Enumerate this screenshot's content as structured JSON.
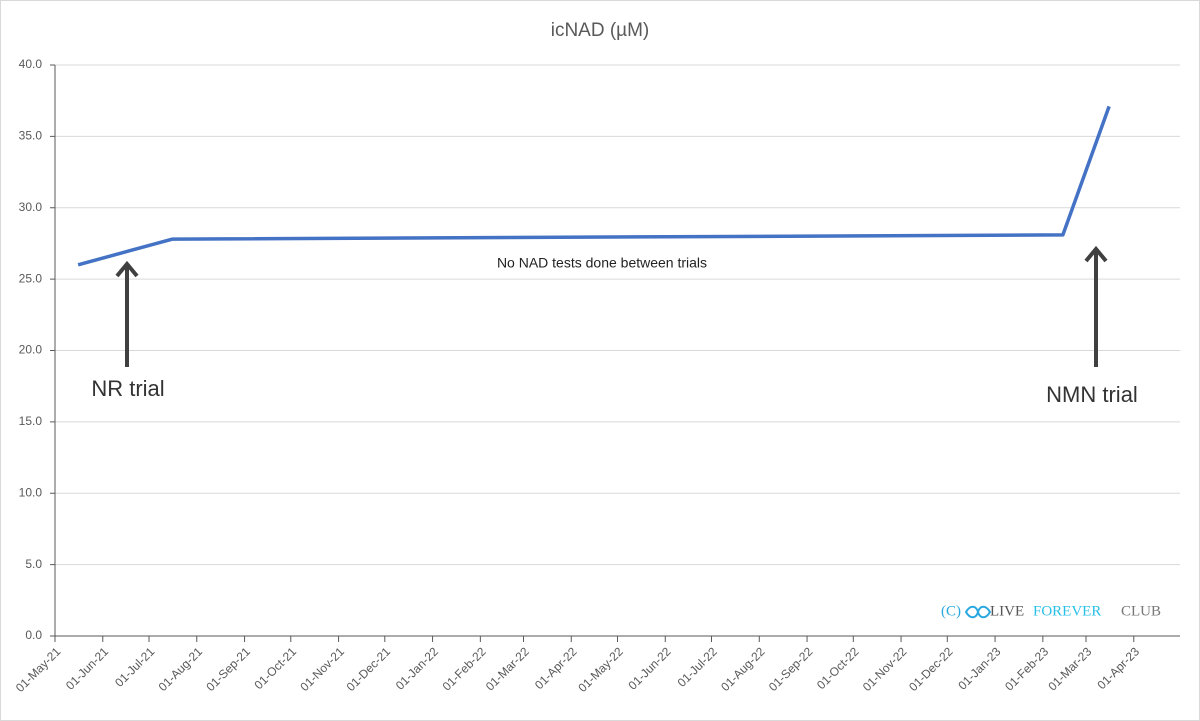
{
  "chart_data": {
    "type": "line",
    "title": "icNAD (µM)",
    "x": [
      "2021-05-16",
      "2021-07-16",
      "2023-02-14",
      "2023-03-16"
    ],
    "series": [
      {
        "name": "icNAD",
        "color": "#4472c4",
        "values": [
          26.0,
          27.8,
          28.1,
          37.1
        ]
      }
    ],
    "xlim": [
      "2021-05-01",
      "2023-05-01"
    ],
    "xticks": [
      {
        "value": "2021-05-01",
        "label": "01-May-21"
      },
      {
        "value": "2021-06-01",
        "label": "01-Jun-21"
      },
      {
        "value": "2021-07-01",
        "label": "01-Jul-21"
      },
      {
        "value": "2021-08-01",
        "label": "01-Aug-21"
      },
      {
        "value": "2021-09-01",
        "label": "01-Sep-21"
      },
      {
        "value": "2021-10-01",
        "label": "01-Oct-21"
      },
      {
        "value": "2021-11-01",
        "label": "01-Nov-21"
      },
      {
        "value": "2021-12-01",
        "label": "01-Dec-21"
      },
      {
        "value": "2022-01-01",
        "label": "01-Jan-22"
      },
      {
        "value": "2022-02-01",
        "label": "01-Feb-22"
      },
      {
        "value": "2022-03-01",
        "label": "01-Mar-22"
      },
      {
        "value": "2022-04-01",
        "label": "01-Apr-22"
      },
      {
        "value": "2022-05-01",
        "label": "01-May-22"
      },
      {
        "value": "2022-06-01",
        "label": "01-Jun-22"
      },
      {
        "value": "2022-07-01",
        "label": "01-Jul-22"
      },
      {
        "value": "2022-08-01",
        "label": "01-Aug-22"
      },
      {
        "value": "2022-09-01",
        "label": "01-Sep-22"
      },
      {
        "value": "2022-10-01",
        "label": "01-Oct-22"
      },
      {
        "value": "2022-11-01",
        "label": "01-Nov-22"
      },
      {
        "value": "2022-12-01",
        "label": "01-Dec-22"
      },
      {
        "value": "2023-01-01",
        "label": "01-Jan-23"
      },
      {
        "value": "2023-02-01",
        "label": "01-Feb-23"
      },
      {
        "value": "2023-03-01",
        "label": "01-Mar-23"
      },
      {
        "value": "2023-04-01",
        "label": "01-Apr-23"
      }
    ],
    "ylim": [
      0,
      40
    ],
    "yticks": [
      {
        "value": 0,
        "label": "0.0"
      },
      {
        "value": 5,
        "label": "5.0"
      },
      {
        "value": 10,
        "label": "10.0"
      },
      {
        "value": 15,
        "label": "15.0"
      },
      {
        "value": 20,
        "label": "20.0"
      },
      {
        "value": 25,
        "label": "25.0"
      },
      {
        "value": 30,
        "label": "30.0"
      },
      {
        "value": 35,
        "label": "35.0"
      },
      {
        "value": 40,
        "label": "40.0"
      }
    ],
    "grid": true,
    "annotations": [
      "No NAD tests done between trials",
      "NR trial",
      "NMN trial"
    ],
    "watermark": [
      "(C)",
      "LIVE",
      "FOREVER",
      "CLUB"
    ]
  }
}
